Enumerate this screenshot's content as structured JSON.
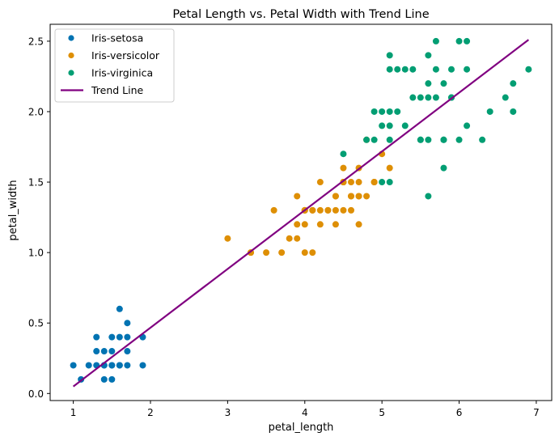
{
  "chart_data": {
    "type": "scatter",
    "title": "Petal Length vs. Petal Width with Trend Line",
    "xlabel": "petal_length",
    "ylabel": "petal_width",
    "xlim": [
      0.7,
      7.2
    ],
    "ylim": [
      -0.05,
      2.62
    ],
    "xticks": [
      1,
      2,
      3,
      4,
      5,
      6,
      7
    ],
    "yticks": [
      0.0,
      0.5,
      1.0,
      1.5,
      2.0,
      2.5
    ],
    "xtick_labels": [
      "1",
      "2",
      "3",
      "4",
      "5",
      "6",
      "7"
    ],
    "ytick_labels": [
      "0.0",
      "0.5",
      "1.0",
      "1.5",
      "2.0",
      "2.5"
    ],
    "grid": false,
    "legend_position": "top-left",
    "series": [
      {
        "name": "Iris-setosa",
        "color": "#0173b2",
        "points": [
          [
            1.4,
            0.2
          ],
          [
            1.3,
            0.2
          ],
          [
            1.5,
            0.2
          ],
          [
            1.7,
            0.4
          ],
          [
            1.4,
            0.3
          ],
          [
            1.5,
            0.1
          ],
          [
            1.6,
            0.2
          ],
          [
            1.1,
            0.1
          ],
          [
            1.2,
            0.2
          ],
          [
            1.3,
            0.4
          ],
          [
            1.7,
            0.3
          ],
          [
            1.5,
            0.3
          ],
          [
            1.0,
            0.2
          ],
          [
            1.7,
            0.5
          ],
          [
            1.9,
            0.2
          ],
          [
            1.6,
            0.4
          ],
          [
            1.4,
            0.1
          ],
          [
            1.5,
            0.4
          ],
          [
            1.9,
            0.4
          ],
          [
            1.3,
            0.3
          ],
          [
            1.6,
            0.6
          ],
          [
            1.6,
            0.2
          ],
          [
            1.4,
            0.2
          ],
          [
            1.5,
            0.2
          ],
          [
            1.7,
            0.2
          ]
        ]
      },
      {
        "name": "Iris-versicolor",
        "color": "#de8f05",
        "points": [
          [
            4.7,
            1.4
          ],
          [
            4.5,
            1.5
          ],
          [
            4.9,
            1.5
          ],
          [
            4.0,
            1.3
          ],
          [
            4.6,
            1.5
          ],
          [
            3.3,
            1.0
          ],
          [
            4.6,
            1.3
          ],
          [
            3.9,
            1.4
          ],
          [
            3.5,
            1.0
          ],
          [
            4.2,
            1.5
          ],
          [
            4.0,
            1.0
          ],
          [
            4.7,
            1.4
          ],
          [
            3.6,
            1.3
          ],
          [
            4.4,
            1.4
          ],
          [
            4.5,
            1.5
          ],
          [
            4.1,
            1.0
          ],
          [
            4.5,
            1.5
          ],
          [
            3.9,
            1.1
          ],
          [
            4.8,
            1.8
          ],
          [
            4.0,
            1.3
          ],
          [
            4.9,
            1.5
          ],
          [
            4.7,
            1.2
          ],
          [
            4.3,
            1.3
          ],
          [
            4.4,
            1.4
          ],
          [
            5.0,
            1.7
          ],
          [
            4.5,
            1.5
          ],
          [
            3.8,
            1.1
          ],
          [
            3.7,
            1.0
          ],
          [
            5.1,
            1.6
          ],
          [
            4.5,
            1.6
          ],
          [
            4.7,
            1.5
          ],
          [
            4.4,
            1.3
          ],
          [
            4.1,
            1.3
          ],
          [
            4.0,
            1.3
          ],
          [
            4.4,
            1.2
          ],
          [
            4.6,
            1.4
          ],
          [
            4.0,
            1.2
          ],
          [
            3.3,
            1.0
          ],
          [
            4.2,
            1.3
          ],
          [
            4.2,
            1.2
          ],
          [
            4.3,
            1.3
          ],
          [
            3.0,
            1.1
          ],
          [
            4.1,
            1.3
          ],
          [
            3.9,
            1.2
          ],
          [
            4.5,
            1.3
          ],
          [
            4.7,
            1.6
          ],
          [
            4.9,
            1.5
          ],
          [
            4.8,
            1.4
          ],
          [
            4.6,
            1.4
          ]
        ]
      },
      {
        "name": "Iris-virginica",
        "color": "#029e73",
        "points": [
          [
            6.0,
            2.5
          ],
          [
            5.1,
            1.9
          ],
          [
            5.9,
            2.1
          ],
          [
            5.6,
            1.8
          ],
          [
            5.8,
            2.2
          ],
          [
            6.6,
            2.1
          ],
          [
            4.5,
            1.7
          ],
          [
            6.3,
            1.8
          ],
          [
            5.8,
            1.8
          ],
          [
            6.1,
            2.5
          ],
          [
            5.1,
            2.0
          ],
          [
            5.3,
            1.9
          ],
          [
            5.5,
            2.1
          ],
          [
            5.0,
            2.0
          ],
          [
            5.1,
            2.4
          ],
          [
            5.3,
            2.3
          ],
          [
            5.5,
            1.8
          ],
          [
            6.7,
            2.2
          ],
          [
            6.9,
            2.3
          ],
          [
            5.0,
            1.5
          ],
          [
            5.7,
            2.3
          ],
          [
            4.9,
            2.0
          ],
          [
            6.7,
            2.0
          ],
          [
            4.9,
            1.8
          ],
          [
            5.7,
            2.1
          ],
          [
            6.0,
            1.8
          ],
          [
            4.8,
            1.8
          ],
          [
            5.6,
            2.1
          ],
          [
            5.8,
            1.6
          ],
          [
            6.1,
            1.9
          ],
          [
            6.4,
            2.0
          ],
          [
            5.6,
            2.2
          ],
          [
            5.1,
            1.5
          ],
          [
            5.6,
            1.4
          ],
          [
            6.1,
            2.3
          ],
          [
            5.6,
            2.4
          ],
          [
            5.5,
            1.8
          ],
          [
            5.4,
            2.1
          ],
          [
            5.2,
            2.3
          ],
          [
            5.1,
            2.3
          ],
          [
            5.9,
            2.3
          ],
          [
            5.7,
            2.5
          ],
          [
            5.2,
            2.0
          ],
          [
            5.0,
            1.9
          ],
          [
            5.4,
            2.3
          ],
          [
            5.1,
            1.8
          ],
          [
            5.8,
            1.8
          ],
          [
            5.9,
            2.1
          ]
        ]
      }
    ],
    "trend_line": {
      "name": "Trend Line",
      "color": "#800080",
      "points": [
        [
          1.0,
          0.05
        ],
        [
          6.9,
          2.51
        ]
      ]
    }
  }
}
